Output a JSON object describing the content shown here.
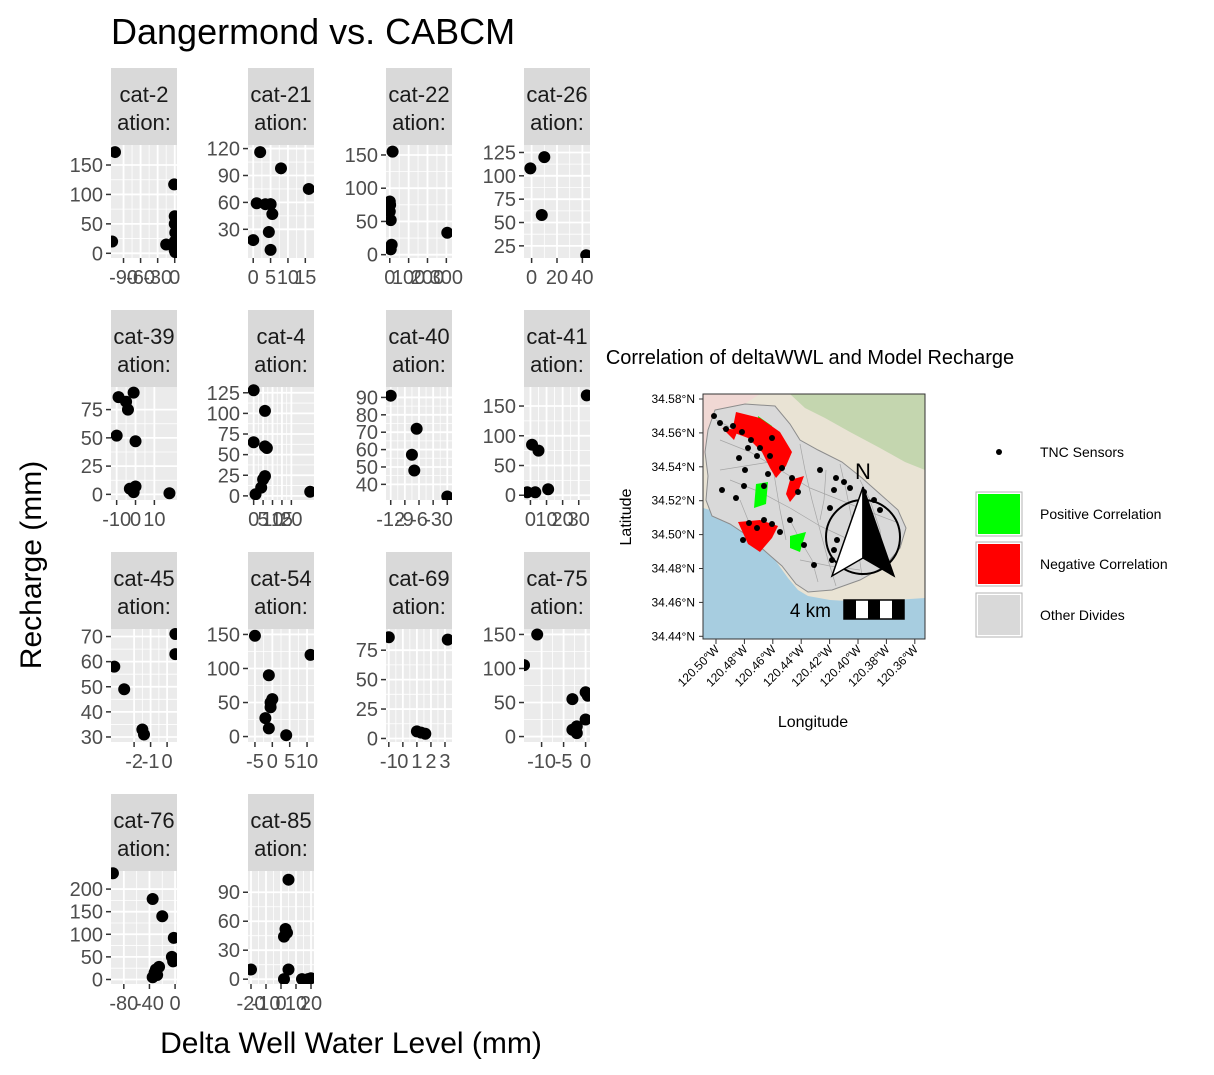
{
  "figure": {
    "title": "Dangermond vs. CABCM",
    "xlabel": "Delta Well Water Level (mm)",
    "ylabel": "Recharge (mm)"
  },
  "chart_data": [
    {
      "type": "scatter",
      "strip": [
        "cat-2",
        "ation:"
      ],
      "xlim": [
        -112,
        4
      ],
      "ylim": [
        -8,
        184
      ],
      "xticks": [
        -90,
        -60,
        -30,
        0
      ],
      "xtick_labels": [
        "-90",
        "-60",
        "-30",
        "0"
      ],
      "yticks": [
        0,
        50,
        100,
        150
      ],
      "ytick_labels": [
        "0",
        "50",
        "100",
        "150"
      ],
      "x": [
        -105,
        -110,
        -15,
        -1,
        0,
        0,
        1,
        0,
        0,
        1
      ],
      "y": [
        172,
        20,
        15,
        117,
        63,
        50,
        35,
        20,
        5,
        2
      ]
    },
    {
      "type": "scatter",
      "strip": [
        "cat-21",
        "ation:"
      ],
      "xlim": [
        -1.5,
        17.5
      ],
      "ylim": [
        -2,
        124
      ],
      "xticks": [
        0,
        5,
        10,
        15
      ],
      "xtick_labels": [
        "0",
        "5",
        "10",
        "15"
      ],
      "yticks": [
        30,
        60,
        90,
        120
      ],
      "ytick_labels": [
        "30",
        "60",
        "90",
        "120"
      ],
      "x": [
        2,
        5,
        8,
        16,
        1,
        3.5,
        5,
        5.5,
        0,
        4.5,
        5
      ],
      "y": [
        116,
        58,
        98,
        75,
        59,
        58,
        58,
        47,
        18,
        27,
        7
      ]
    },
    {
      "type": "scatter",
      "strip": [
        "cat-22",
        "ation:"
      ],
      "xlim": [
        -20,
        330
      ],
      "ylim": [
        -5,
        165
      ],
      "xticks": [
        0,
        100,
        200,
        300
      ],
      "xtick_labels": [
        "0",
        "100",
        "200",
        "300"
      ],
      "yticks": [
        0,
        50,
        100,
        150
      ],
      "ytick_labels": [
        "0",
        "50",
        "100",
        "150"
      ],
      "x": [
        15,
        0,
        2,
        0,
        5,
        10,
        5,
        305
      ],
      "y": [
        155,
        80,
        75,
        65,
        52,
        15,
        8,
        33
      ]
    },
    {
      "type": "scatter",
      "strip": [
        "cat-26",
        "ation:"
      ],
      "xlim": [
        -6,
        46
      ],
      "ylim": [
        12,
        133
      ],
      "xticks": [
        0,
        20,
        40
      ],
      "xtick_labels": [
        "0",
        "20",
        "40"
      ],
      "yticks": [
        25,
        50,
        75,
        100,
        125
      ],
      "ytick_labels": [
        "25",
        "50",
        "75",
        "100",
        "125"
      ],
      "x": [
        10,
        -1,
        8,
        43
      ],
      "y": [
        120,
        108,
        58,
        15
      ]
    },
    {
      "type": "scatter",
      "strip": [
        "cat-39",
        "ation:"
      ],
      "xlim": [
        -13,
        22
      ],
      "ylim": [
        -5,
        95
      ],
      "xticks": [
        -10,
        0,
        10
      ],
      "xtick_labels": [
        "-10",
        "0",
        "10"
      ],
      "yticks": [
        0,
        25,
        50,
        75
      ],
      "ytick_labels": [
        "0",
        "25",
        "50",
        "75"
      ],
      "x": [
        -1,
        -9,
        -5,
        -4,
        -10,
        0,
        -3,
        0,
        -1,
        18
      ],
      "y": [
        90,
        86,
        82,
        75,
        52,
        47,
        5,
        7,
        2,
        1
      ]
    },
    {
      "type": "scatter",
      "strip": [
        "cat-4",
        "ation:"
      ],
      "xlim": [
        -3,
        32
      ],
      "ylim": [
        -5,
        132
      ],
      "xticks": [
        0,
        5,
        10,
        15,
        20
      ],
      "xtick_labels": [
        "0",
        "5",
        "10",
        "15",
        "20"
      ],
      "yticks": [
        0,
        25,
        50,
        75,
        100,
        125
      ],
      "ytick_labels": [
        "0",
        "25",
        "50",
        "75",
        "100",
        "125"
      ],
      "x": [
        0,
        6,
        0,
        6,
        7,
        6,
        5,
        4,
        1,
        30
      ],
      "y": [
        128,
        103,
        65,
        60,
        58,
        24,
        20,
        10,
        2,
        5
      ]
    },
    {
      "type": "scatter",
      "strip": [
        "cat-40",
        "ation:"
      ],
      "xlim": [
        -13,
        1
      ],
      "ylim": [
        31,
        96
      ],
      "xticks": [
        -12,
        -9,
        -6,
        -3,
        0
      ],
      "xtick_labels": [
        "-12",
        "-9",
        "-6",
        "-3",
        "0"
      ],
      "yticks": [
        40,
        50,
        60,
        70,
        80,
        90
      ],
      "ytick_labels": [
        "40",
        "50",
        "60",
        "70",
        "80",
        "90"
      ],
      "x": [
        -12,
        -6.5,
        -7.5,
        -7,
        0
      ],
      "y": [
        91,
        72,
        57,
        48,
        33
      ]
    },
    {
      "type": "scatter",
      "strip": [
        "cat-41",
        "ation:"
      ],
      "xlim": [
        -4,
        37
      ],
      "ylim": [
        -8,
        182
      ],
      "xticks": [
        0,
        10,
        20,
        30
      ],
      "xtick_labels": [
        "0",
        "10",
        "20",
        "30"
      ],
      "yticks": [
        0,
        50,
        100,
        150
      ],
      "ytick_labels": [
        "0",
        "50",
        "100",
        "150"
      ],
      "x": [
        35,
        1,
        5,
        -2,
        3,
        11
      ],
      "y": [
        168,
        85,
        75,
        5,
        5,
        10
      ]
    },
    {
      "type": "scatter",
      "strip": [
        "cat-45",
        "ation:"
      ],
      "xlim": [
        -3.4,
        0.6
      ],
      "ylim": [
        28,
        73
      ],
      "xticks": [
        -2,
        -1,
        0
      ],
      "xtick_labels": [
        "-2",
        "-1",
        "0"
      ],
      "yticks": [
        30,
        40,
        50,
        60,
        70
      ],
      "ytick_labels": [
        "30",
        "40",
        "50",
        "60",
        "70"
      ],
      "x": [
        0.5,
        0.5,
        -3.2,
        -2.6,
        -1.5,
        -1.4
      ],
      "y": [
        71,
        63,
        58,
        49,
        33,
        31
      ]
    },
    {
      "type": "scatter",
      "strip": [
        "cat-54",
        "ation:"
      ],
      "xlim": [
        -7,
        12
      ],
      "ylim": [
        -8,
        158
      ],
      "xticks": [
        -5,
        0,
        5,
        10
      ],
      "xtick_labels": [
        "-5",
        "0",
        "5",
        "10"
      ],
      "yticks": [
        0,
        50,
        100,
        150
      ],
      "ytick_labels": [
        "0",
        "50",
        "100",
        "150"
      ],
      "x": [
        -5,
        -1,
        0,
        -0.5,
        -0.5,
        -2,
        -1,
        4,
        11
      ],
      "y": [
        148,
        90,
        55,
        50,
        43,
        27,
        12,
        2,
        120
      ]
    },
    {
      "type": "scatter",
      "strip": [
        "cat-69",
        "ation:"
      ],
      "xlim": [
        -1.2,
        3.5
      ],
      "ylim": [
        -3,
        93
      ],
      "xticks": [
        -1,
        0,
        1,
        2,
        3
      ],
      "xtick_labels": [
        "-1",
        "0",
        "1",
        "2",
        "3"
      ],
      "yticks": [
        0,
        25,
        50,
        75
      ],
      "ytick_labels": [
        "0",
        "25",
        "50",
        "75"
      ],
      "x": [
        -1,
        1,
        1.3,
        1.6,
        3.2
      ],
      "y": [
        86,
        6,
        5,
        4,
        84
      ]
    },
    {
      "type": "scatter",
      "strip": [
        "cat-75",
        "ation:"
      ],
      "xlim": [
        -14,
        1
      ],
      "ylim": [
        -8,
        158
      ],
      "xticks": [
        -10,
        -5,
        0
      ],
      "xtick_labels": [
        "-10",
        "-5",
        "0"
      ],
      "yticks": [
        0,
        50,
        100,
        150
      ],
      "ytick_labels": [
        "0",
        "50",
        "100",
        "150"
      ],
      "x": [
        -11,
        -14,
        0,
        0.5,
        -3,
        -2,
        -3,
        -2,
        0
      ],
      "y": [
        150,
        105,
        65,
        60,
        55,
        15,
        10,
        5,
        25
      ]
    },
    {
      "type": "scatter",
      "strip": [
        "cat-76",
        "ation:"
      ],
      "xlim": [
        -100,
        3
      ],
      "ylim": [
        -10,
        240
      ],
      "xticks": [
        -80,
        -40,
        0
      ],
      "xtick_labels": [
        "-80",
        "-40",
        "0"
      ],
      "yticks": [
        0,
        50,
        100,
        150,
        200
      ],
      "ytick_labels": [
        "0",
        "50",
        "100",
        "150",
        "200"
      ],
      "x": [
        -97,
        -35,
        -20,
        -2,
        -5,
        -3,
        -25,
        -30,
        -32,
        -28,
        -35
      ],
      "y": [
        235,
        178,
        140,
        92,
        50,
        40,
        28,
        22,
        15,
        10,
        5
      ]
    },
    {
      "type": "scatter",
      "strip": [
        "cat-85",
        "ation:"
      ],
      "xlim": [
        -22,
        22
      ],
      "ylim": [
        -5,
        112
      ],
      "xticks": [
        -20,
        -10,
        0,
        10,
        20
      ],
      "xtick_labels": [
        "-20",
        "-10",
        "0",
        "10",
        "20"
      ],
      "yticks": [
        0,
        30,
        60,
        90
      ],
      "ytick_labels": [
        "0",
        "30",
        "60",
        "90"
      ],
      "x": [
        -20,
        5,
        3,
        4,
        2,
        5,
        2,
        14,
        18,
        20
      ],
      "y": [
        10,
        103,
        52,
        48,
        44,
        10,
        0,
        0,
        0,
        1
      ]
    }
  ],
  "map": {
    "title": "Correlation of deltaWWL and Model Recharge",
    "xlabel": "Longitude",
    "ylabel": "Latitude",
    "lat_ticks": [
      "34.58°N",
      "34.56°N",
      "34.54°N",
      "34.52°N",
      "34.50°N",
      "34.48°N",
      "34.46°N",
      "34.44°N"
    ],
    "lon_ticks": [
      "120.50°W",
      "120.48°W",
      "120.46°W",
      "120.44°W",
      "120.42°W",
      "120.40°W",
      "120.38°W",
      "120.36°W"
    ],
    "north_label": "N",
    "scale_label": "4 km",
    "legend": [
      {
        "label": "TNC Sensors",
        "kind": "point",
        "color": "#000000"
      },
      {
        "label": "Positive Correlation",
        "kind": "fill",
        "color": "#00ff00"
      },
      {
        "label": "Negative Correlation",
        "kind": "fill",
        "color": "#ff0000"
      },
      {
        "label": "Other Divides",
        "kind": "fill",
        "color": "#d9d9d9"
      }
    ],
    "colors": {
      "water": "#a7cde0",
      "land": "#e9e3d4",
      "divides": "#d9d9d9",
      "terrain": "#b7d2a3"
    }
  }
}
